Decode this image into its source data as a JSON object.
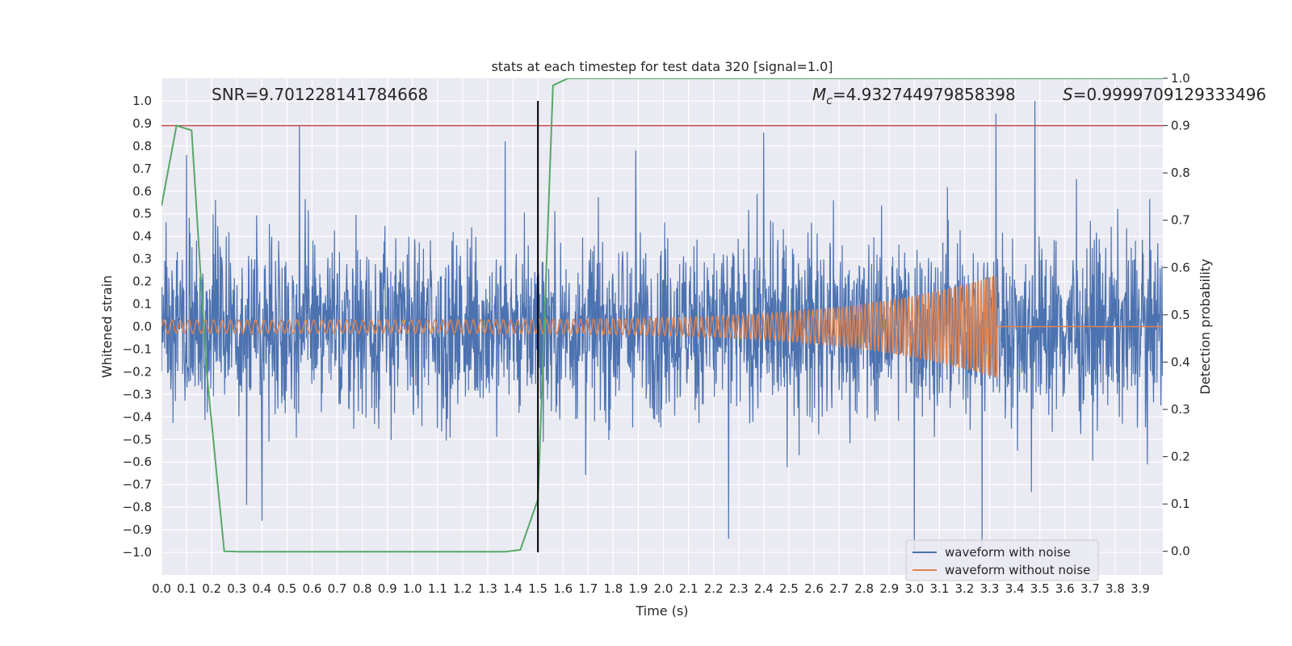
{
  "chart_data": {
    "type": "line",
    "title": "stats at each timestep for test data 320 [signal=1.0]",
    "xlabel": "Time (s)",
    "ylabel": "Whitened strain",
    "y2label": "Detection probability",
    "xlim": [
      0.0,
      3.99
    ],
    "ylim": [
      -1.1,
      1.1
    ],
    "y2lim": [
      -0.05,
      1.0
    ],
    "x_ticks": [
      0.0,
      0.1,
      0.2,
      0.3,
      0.4,
      0.5,
      0.6,
      0.7,
      0.8,
      0.9,
      1.0,
      1.1,
      1.2,
      1.3,
      1.4,
      1.5,
      1.6,
      1.7,
      1.8,
      1.9,
      2.0,
      2.1,
      2.2,
      2.3,
      2.4,
      2.5,
      2.6,
      2.7,
      2.8,
      2.9,
      3.0,
      3.1,
      3.2,
      3.3,
      3.4,
      3.5,
      3.6,
      3.7,
      3.8,
      3.9
    ],
    "x_tick_labels": [
      "0.0",
      "0.1",
      "0.2",
      "0.3",
      "0.4",
      "0.5",
      "0.6",
      "0.7",
      "0.8",
      "0.9",
      "1.0",
      "1.1",
      "1.2",
      "1.3",
      "1.4",
      "1.5",
      "1.6",
      "1.7",
      "1.8",
      "1.9",
      "2.0",
      "2.1",
      "2.2",
      "2.3",
      "2.4",
      "2.5",
      "2.6",
      "2.7",
      "2.8",
      "2.9",
      "3.0",
      "3.1",
      "3.2",
      "3.3",
      "3.4",
      "3.5",
      "3.6",
      "3.7",
      "3.8",
      "3.9"
    ],
    "y_ticks": [
      1.0,
      0.9,
      0.8,
      0.7,
      0.6,
      0.5,
      0.4,
      0.3,
      0.2,
      0.1,
      0.0,
      -0.1,
      -0.2,
      -0.3,
      -0.4,
      -0.5,
      -0.6,
      -0.7,
      -0.8,
      -0.9,
      -1.0
    ],
    "y_tick_labels": [
      "1.0",
      "0.9",
      "0.8",
      "0.7",
      "0.6",
      "0.5",
      "0.4",
      "0.3",
      "0.2",
      "0.1",
      "0.0",
      "−0.1",
      "−0.2",
      "−0.3",
      "−0.4",
      "−0.5",
      "−0.6",
      "−0.7",
      "−0.8",
      "−0.9",
      "−1.0"
    ],
    "y2_ticks": [
      1.0,
      0.9,
      0.8,
      0.7,
      0.6,
      0.5,
      0.4,
      0.3,
      0.2,
      0.1,
      0.0
    ],
    "y2_tick_labels": [
      "1.0",
      "0.9",
      "0.8",
      "0.7",
      "0.6",
      "0.5",
      "0.4",
      "0.3",
      "0.2",
      "0.1",
      "0.0"
    ],
    "annotations": {
      "snr": "SNR=9.701228141784668",
      "mc_symbol": "M",
      "mc_sub": "c",
      "mc_value": "=4.932744979858398",
      "s_symbol": "S",
      "s_value": "=0.9999709129333496"
    },
    "series": [
      {
        "name": "waveform with noise",
        "color": "#4c72b0",
        "description": "whitened noisy strain, approx. amplitude 0.3 with spikes",
        "noise_std": 0.2,
        "peaks": [
          {
            "x": 0.55,
            "y": 0.89
          },
          {
            "x": 1.37,
            "y": 0.82
          },
          {
            "x": 2.4,
            "y": 0.86
          },
          {
            "x": 3.48,
            "y": 1.0
          },
          {
            "x": 0.4,
            "y": -0.86
          },
          {
            "x": 2.26,
            "y": -0.94
          },
          {
            "x": 3.0,
            "y": -1.0
          },
          {
            "x": 3.27,
            "y": -0.98
          },
          {
            "x": 0.34,
            "y": -0.79
          },
          {
            "x": 0.1,
            "y": 0.76
          },
          {
            "x": 1.89,
            "y": 0.78
          }
        ]
      },
      {
        "name": "waveform without noise",
        "color": "#dd8452",
        "description": "chirp signal ending at merger",
        "amp_start": 0.03,
        "amp_end": 0.23,
        "freq_start": 30,
        "freq_end": 90,
        "t_end": 3.33
      },
      {
        "name": "detection probability",
        "color": "#55a868",
        "x": [
          0.0,
          0.06,
          0.12,
          0.18,
          0.25,
          0.31,
          1.37,
          1.43,
          1.5,
          1.56,
          1.62,
          3.99
        ],
        "y": [
          0.73,
          0.9,
          0.89,
          0.38,
          0.0,
          -0.001,
          -0.001,
          0.003,
          0.11,
          0.985,
          1.0,
          1.0
        ]
      }
    ],
    "threshold": {
      "y2": 0.9,
      "color": "#c44e52"
    },
    "vline": {
      "x": 1.5,
      "ymin": -1.0,
      "ymax": 1.0,
      "color": "#000000"
    },
    "legend": {
      "position": "lower-right",
      "entries": [
        {
          "label": "waveform with noise",
          "color": "#4c72b0"
        },
        {
          "label": "waveform without noise",
          "color": "#dd8452"
        }
      ]
    }
  }
}
